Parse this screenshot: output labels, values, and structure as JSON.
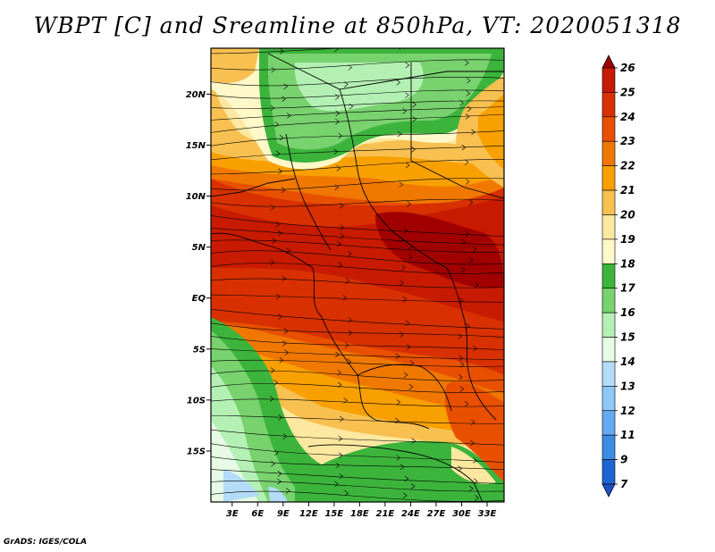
{
  "title": "WBPT [C] and Sreamline at 850hPa, VT: 2020051318",
  "credit": "GrADS: IGES/COLA",
  "lat_labels": [
    "20N",
    "15N",
    "10N",
    "5N",
    "EQ",
    "5S",
    "10S",
    "15S"
  ],
  "lat_values": [
    20,
    15,
    10,
    5,
    0,
    -5,
    -10,
    -15
  ],
  "lon_labels": [
    "3E",
    "6E",
    "9E",
    "12E",
    "15E",
    "18E",
    "21E",
    "24E",
    "27E",
    "30E",
    "33E"
  ],
  "lon_values": [
    3,
    6,
    9,
    12,
    15,
    18,
    21,
    24,
    27,
    30,
    33
  ],
  "extent": {
    "lon_min": 0.5,
    "lon_max": 35,
    "lat_min": -20,
    "lat_max": 24.5
  },
  "colorbar": {
    "labels": [
      "26",
      "25",
      "24",
      "23",
      "22",
      "21",
      "20",
      "19",
      "18",
      "17",
      "16",
      "15",
      "14",
      "13",
      "12",
      "11",
      "9",
      "7"
    ],
    "colors": [
      "#a00000",
      "#c81a00",
      "#d83000",
      "#e85000",
      "#f07800",
      "#f8a000",
      "#f8c050",
      "#fce8a0",
      "#fff8c8",
      "#3cb43c",
      "#78d26e",
      "#b4f0b4",
      "#e6fae6",
      "#b4dcf8",
      "#8cc8f8",
      "#64aaf0",
      "#3c8ce6",
      "#1e64d2",
      "#1e50c8"
    ]
  }
}
